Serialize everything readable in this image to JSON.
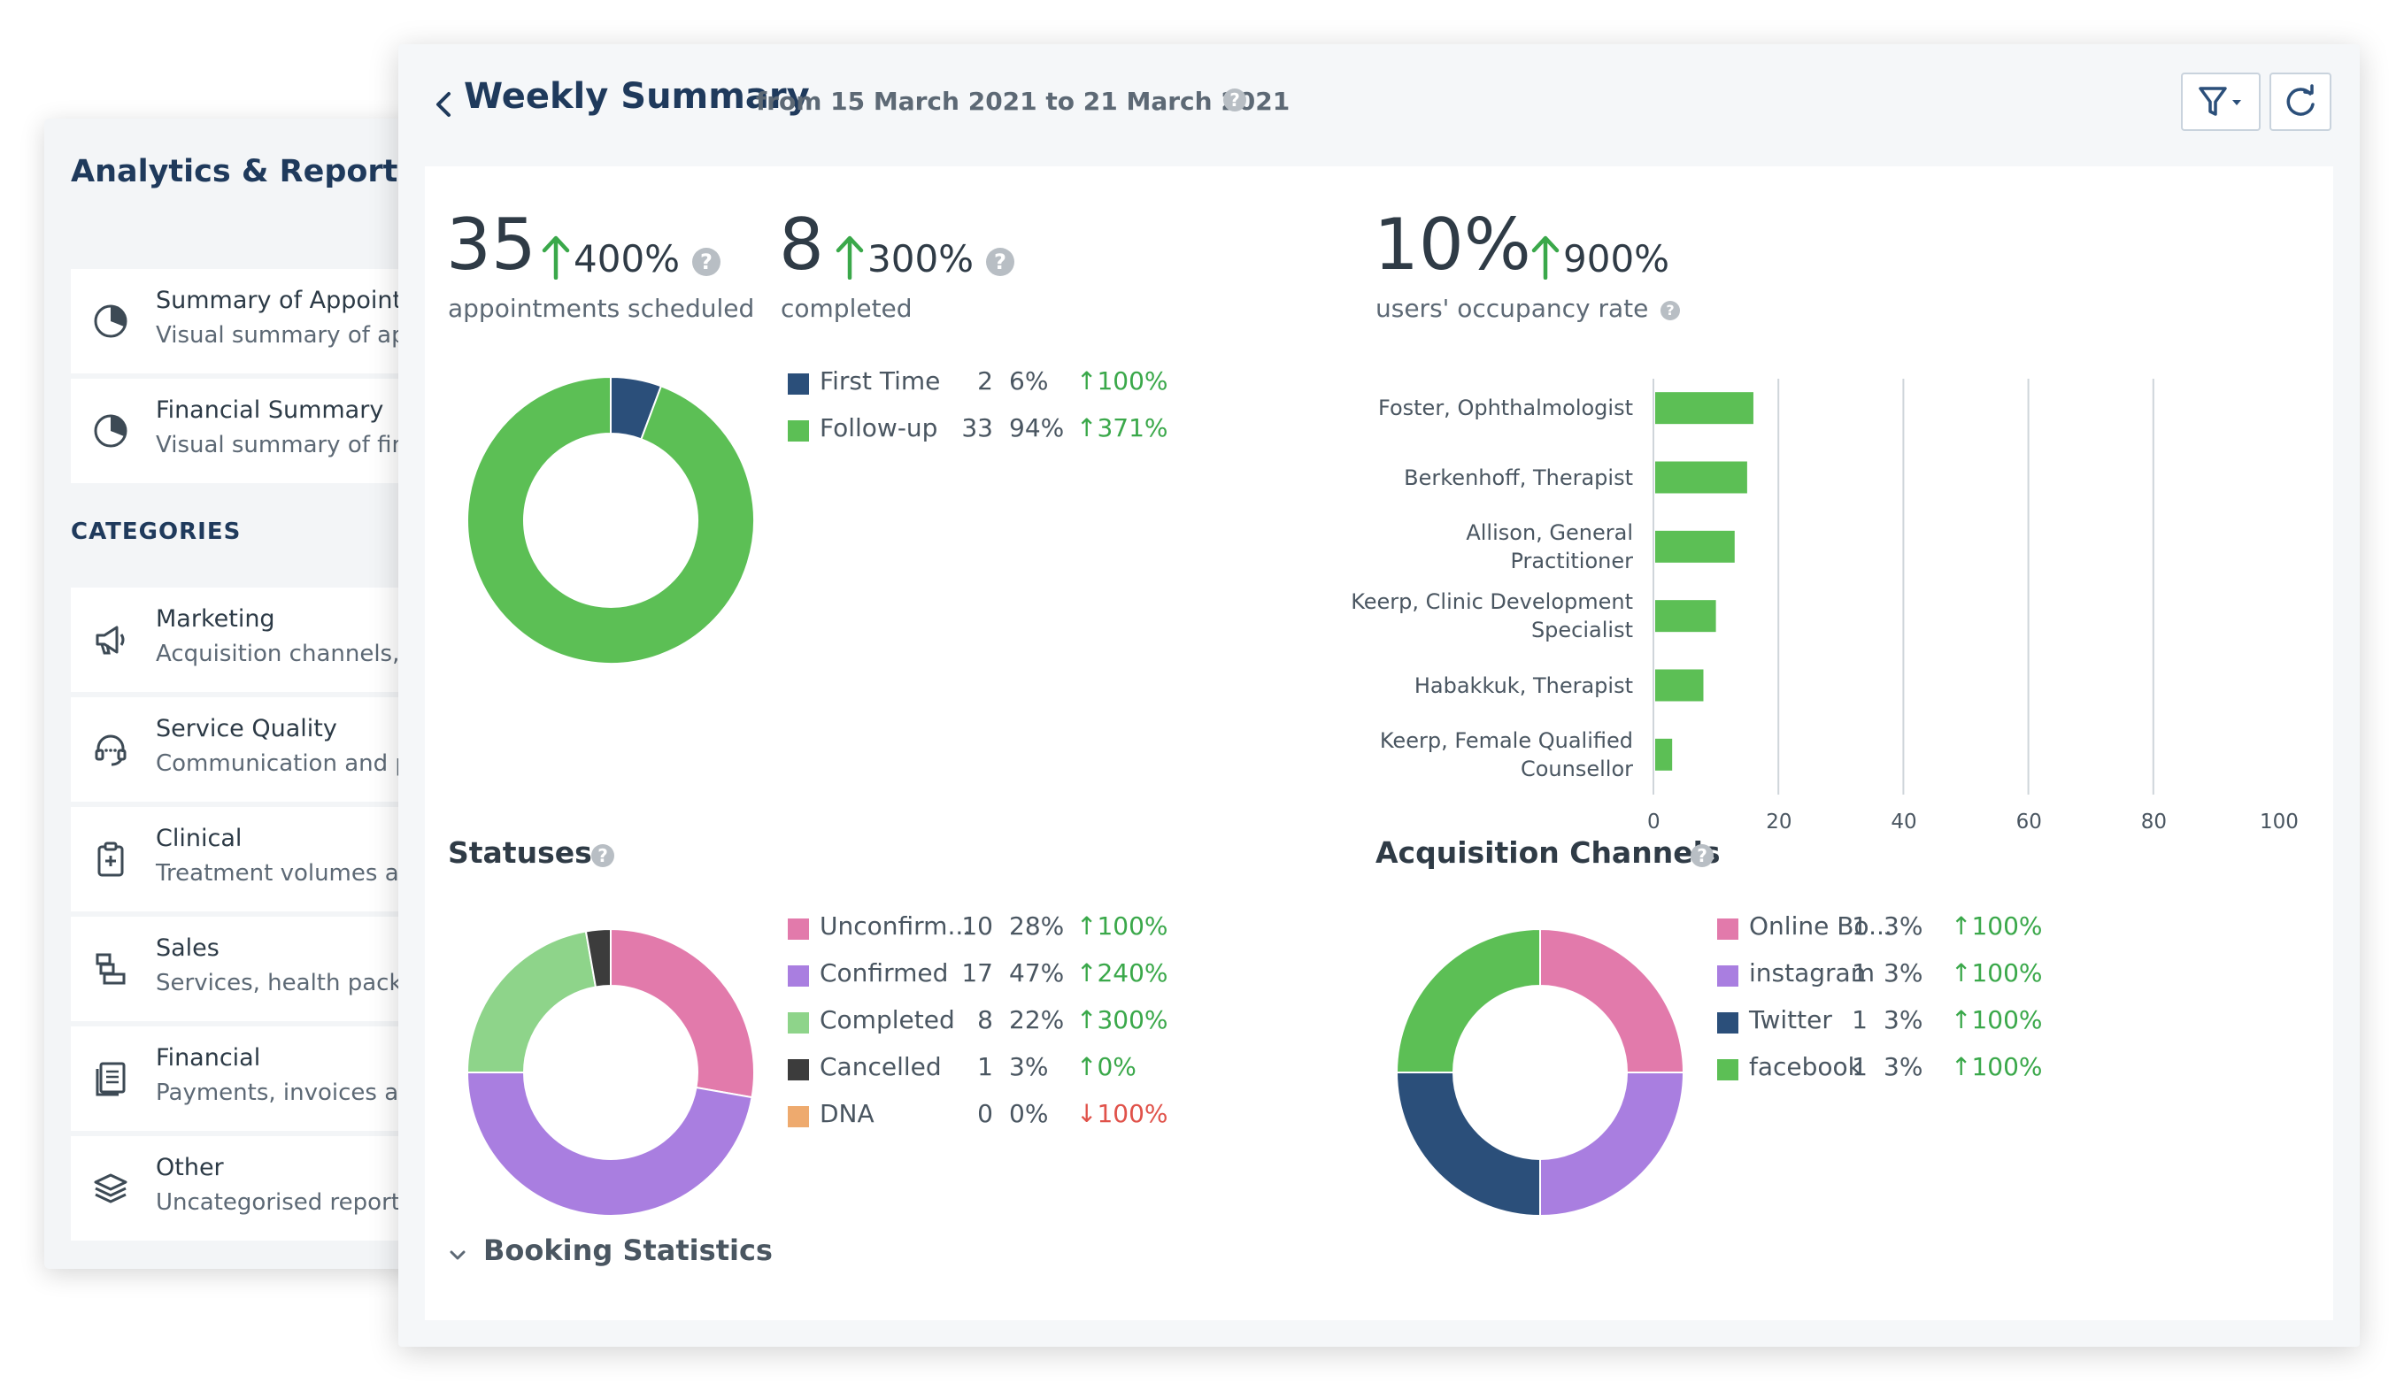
{
  "sidebar": {
    "title": "Analytics & Reports",
    "top_items": [
      {
        "title": "Summary of Appointm",
        "subtitle": "Visual summary of app",
        "icon": "pie-chart-icon"
      },
      {
        "title": "Financial Summary",
        "subtitle": "Visual summary of fina",
        "icon": "pie-chart-icon"
      }
    ],
    "categories_label": "CATEGORIES",
    "categories": [
      {
        "title": "Marketing",
        "subtitle": "Acquisition channels, a",
        "icon": "megaphone-icon"
      },
      {
        "title": "Service Quality",
        "subtitle": "Communication and pa",
        "icon": "headset-icon"
      },
      {
        "title": "Clinical",
        "subtitle": "Treatment volumes an",
        "icon": "clipboard-icon"
      },
      {
        "title": "Sales",
        "subtitle": "Services, health packag",
        "icon": "stack-boxes-icon"
      },
      {
        "title": "Financial",
        "subtitle": "Payments, invoices and",
        "icon": "document-icon"
      },
      {
        "title": "Other",
        "subtitle": "Uncategorised reports",
        "icon": "layers-icon"
      }
    ]
  },
  "header": {
    "title": "Weekly Summary",
    "range": "from 15 March 2021 to 21 March 2021",
    "help": "?"
  },
  "stats": {
    "scheduled": {
      "value": "35",
      "change": "400%",
      "label": "appointments scheduled"
    },
    "completed": {
      "value": "8",
      "change": "300%",
      "label": "completed"
    },
    "occupancy": {
      "value": "10%",
      "change": "900%",
      "label": "users' occupancy rate"
    }
  },
  "colors": {
    "green": "#5cbf55",
    "navy": "#2b4f7a",
    "pink": "#e27aab",
    "purple": "#a97ee0",
    "light_green": "#8ed48a",
    "dark": "#3c3c3c",
    "orange": "#eeaa6e"
  },
  "appointment_types": [
    {
      "name": "First Time",
      "count": "2",
      "pct": "6%",
      "trend": "100%",
      "dir": "up",
      "color": "#2b4f7a",
      "value": 2
    },
    {
      "name": "Follow-up",
      "count": "33",
      "pct": "94%",
      "trend": "371%",
      "dir": "up",
      "color": "#5cbf55",
      "value": 33
    }
  ],
  "statuses_title": "Statuses",
  "statuses": [
    {
      "name": "Unconfirm...",
      "count": "10",
      "pct": "28%",
      "trend": "100%",
      "dir": "up",
      "color": "#e27aab",
      "value": 10
    },
    {
      "name": "Confirmed",
      "count": "17",
      "pct": "47%",
      "trend": "240%",
      "dir": "up",
      "color": "#a97ee0",
      "value": 17
    },
    {
      "name": "Completed",
      "count": "8",
      "pct": "22%",
      "trend": "300%",
      "dir": "up",
      "color": "#8ed48a",
      "value": 8
    },
    {
      "name": "Cancelled",
      "count": "1",
      "pct": "3%",
      "trend": "0%",
      "dir": "up",
      "color": "#3c3c3c",
      "value": 1
    },
    {
      "name": "DNA",
      "count": "0",
      "pct": "0%",
      "trend": "100%",
      "dir": "down",
      "color": "#eeaa6e",
      "value": 0
    }
  ],
  "acquisition_title": "Acquisition Channels",
  "acquisition": [
    {
      "name": "Online Bo...",
      "count": "1",
      "pct": "3%",
      "trend": "100%",
      "dir": "up",
      "color": "#e27aab",
      "value": 1
    },
    {
      "name": "instagram",
      "count": "1",
      "pct": "3%",
      "trend": "100%",
      "dir": "up",
      "color": "#a97ee0",
      "value": 1
    },
    {
      "name": "Twitter",
      "count": "1",
      "pct": "3%",
      "trend": "100%",
      "dir": "up",
      "color": "#2b4f7a",
      "value": 1
    },
    {
      "name": "facebook",
      "count": "1",
      "pct": "3%",
      "trend": "100%",
      "dir": "up",
      "color": "#5cbf55",
      "value": 1
    }
  ],
  "booking_statistics": "Booking Statistics",
  "chart_data": {
    "type": "bar",
    "orientation": "horizontal",
    "title": "users' occupancy rate",
    "categories": [
      "Foster, Ophthalmologist",
      "Berkenhoff, Therapist",
      "Allison, General Practitioner",
      "Keerp, Clinic Development Specialist",
      "Habakkuk, Therapist",
      "Keerp, Female Qualified Counsellor"
    ],
    "category_lines": [
      [
        "Foster, Ophthalmologist"
      ],
      [
        "Berkenhoff, Therapist"
      ],
      [
        "Allison, General",
        "Practitioner"
      ],
      [
        "Keerp, Clinic Development",
        "Specialist"
      ],
      [
        "Habakkuk, Therapist"
      ],
      [
        "Keerp, Female Qualified",
        "Counsellor"
      ]
    ],
    "values": [
      16,
      15,
      13,
      10,
      8,
      3
    ],
    "xlim": [
      0,
      100
    ],
    "xticks": [
      "0",
      "20",
      "40",
      "60",
      "80",
      "100"
    ],
    "grid": true
  }
}
